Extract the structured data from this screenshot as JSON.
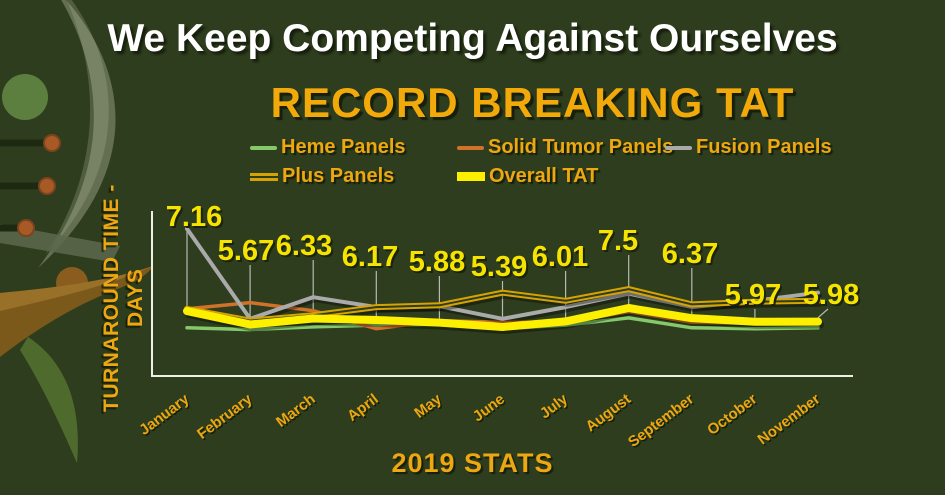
{
  "page": {
    "title": "We Keep Competing Against Ourselves",
    "footer": "2019 STATS"
  },
  "colors": {
    "background": "#2e3d1d",
    "title_white": "#ffffff",
    "accent_gold": "#eda710",
    "data_label_yellow": "#f6e400",
    "axis": "#eef0e4",
    "leader_line": "#b6bab2"
  },
  "chart_data": {
    "type": "line",
    "title": "RECORD BREAKING TAT",
    "xlabel": "2019 STATS",
    "ylabel": "TURNAROUND TIME - DAYS",
    "categories": [
      "January",
      "February",
      "March",
      "April",
      "May",
      "June",
      "July",
      "August",
      "September",
      "October",
      "November"
    ],
    "ylim": [
      0,
      18
    ],
    "grid": false,
    "legend_position": "top",
    "x_label_rotation": -37,
    "series": [
      {
        "name": "Heme Panels",
        "color": "#85c96a",
        "width": 3.5,
        "values": [
          5.3,
          5.1,
          5.4,
          5.6,
          5.7,
          5.2,
          5.6,
          6.4,
          5.3,
          5.2,
          5.3
        ]
      },
      {
        "name": "Solid Tumor Panels",
        "color": "#d2722a",
        "width": 3.5,
        "values": [
          7.4,
          8.1,
          7.2,
          5.2,
          6.1,
          5.9,
          5.9,
          7.1,
          5.9,
          5.8,
          5.8
        ]
      },
      {
        "name": "Fusion Panels",
        "color": "#a9aaa9",
        "width": 4,
        "values": [
          16.3,
          6.3,
          8.7,
          7.6,
          7.7,
          6.3,
          7.6,
          9.1,
          7.6,
          8.3,
          9.2
        ]
      },
      {
        "name": "Plus Panels",
        "color": "#d7a302",
        "width": 6,
        "style": "double",
        "values": [
          7.4,
          6.1,
          6.7,
          7.6,
          7.8,
          9.2,
          8.3,
          9.6,
          7.9,
          8.2,
          8.3
        ]
      },
      {
        "name": "Overall TAT",
        "color": "#fcf000",
        "width": 8,
        "values": [
          7.16,
          5.67,
          6.33,
          6.17,
          5.88,
          5.39,
          6.01,
          7.5,
          6.37,
          5.97,
          5.98
        ]
      }
    ],
    "point_labels": {
      "series": "Overall TAT",
      "values": [
        "7.16",
        "5.67",
        "6.33",
        "6.17",
        "5.88",
        "5.39",
        "6.01",
        "7.5",
        "6.37",
        "5.97",
        "5.98"
      ]
    }
  }
}
